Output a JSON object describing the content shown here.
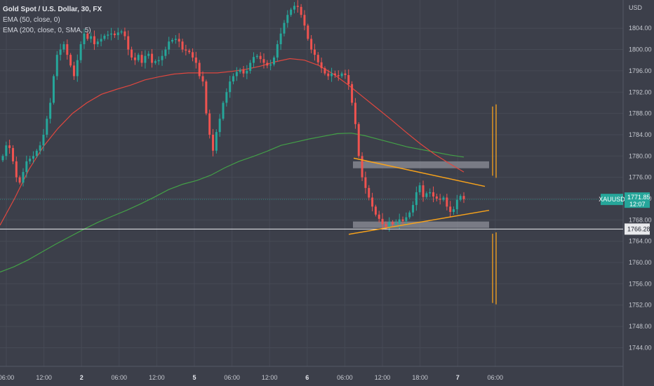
{
  "legend": {
    "title": "Gold Spot / U.S. Dollar, 30, FX",
    "ema50": "EMA (50, close, 0)",
    "ema200": "EMA (200, close, 0, SMA, 5)"
  },
  "colors": {
    "background": "#3c3f4a",
    "up": "#26a69a",
    "down": "#ef5350",
    "ema50": "#e0473f",
    "ema200": "#43a047",
    "trendline": "#f7a21b",
    "zone": "#8d909a",
    "price_tag": "#26a69a",
    "level_tag": "#e8e9ec"
  },
  "price_tag": {
    "symbol": "XAUUSD",
    "price": "1771.85",
    "countdown": "12:07"
  },
  "level_tag": {
    "price": "1766.28"
  },
  "chart_data": {
    "type": "candlestick",
    "currency": "USD",
    "timeframe": "30",
    "ylim": [
      1740.5,
      1809.3
    ],
    "y_ticks": [
      "1804.00",
      "1800.00",
      "1796.00",
      "1792.00",
      "1788.00",
      "1784.00",
      "1780.00",
      "1776.00",
      "1772.00",
      "1768.00",
      "1764.00",
      "1760.00",
      "1756.00",
      "1752.00",
      "1748.00",
      "1744.00"
    ],
    "x_ticks": [
      "06:00",
      "12:00",
      "2",
      "06:00",
      "12:00",
      "5",
      "06:00",
      "12:00",
      "6",
      "06:00",
      "12:00",
      "18:00",
      "7",
      "06:00"
    ],
    "bold_x_ticks": [
      "2",
      "5",
      "6",
      "7"
    ],
    "closes": [
      1780,
      1782,
      1781.5,
      1779,
      1776,
      1775,
      1777,
      1779,
      1779.5,
      1780,
      1781,
      1782,
      1784,
      1787,
      1790,
      1795,
      1799,
      1800,
      1801,
      1799,
      1797,
      1795,
      1798,
      1801,
      1803,
      1802,
      1802.5,
      1801,
      1801.5,
      1802,
      1802.6,
      1802.8,
      1803,
      1802.7,
      1803.2,
      1803.4,
      1802.5,
      1800,
      1798.5,
      1798,
      1799,
      1797.5,
      1798.8,
      1799.2,
      1797.5,
      1797.8,
      1798,
      1798.8,
      1800,
      1801.5,
      1801.8,
      1802,
      1801.5,
      1800,
      1799.8,
      1799.5,
      1798.5,
      1797.5,
      1795,
      1794,
      1788,
      1784,
      1781,
      1784.5,
      1787,
      1790,
      1792,
      1794,
      1795,
      1795.8,
      1796.2,
      1795.5,
      1796,
      1797.5,
      1798.6,
      1798.8,
      1798.2,
      1797.5,
      1797,
      1797.2,
      1798.5,
      1801,
      1803,
      1805,
      1806.5,
      1807.5,
      1808.2,
      1808,
      1806.5,
      1804.5,
      1802,
      1800,
      1799,
      1797.6,
      1796.5,
      1795.5,
      1795,
      1795.5,
      1795.2,
      1795,
      1795.5,
      1795.2,
      1793.5,
      1790,
      1786,
      1780,
      1776,
      1774,
      1772.2,
      1770.5,
      1769,
      1768.2,
      1767.2,
      1766.7,
      1767.6,
      1767.2,
      1767.4,
      1768.1,
      1767.8,
      1768.5,
      1769.4,
      1770.8,
      1773.2,
      1774.5,
      1772.3,
      1773,
      1773.2,
      1772.4,
      1772,
      1771.8,
      1772.2,
      1770.5,
      1769.5,
      1770,
      1771.8,
      1772.5,
      1771.9
    ],
    "ema50": [
      1767,
      1772,
      1777.5,
      1781.8,
      1785.2,
      1788,
      1790,
      1791.6,
      1792.5,
      1793.3,
      1794.3,
      1794.9,
      1795.4,
      1795.6,
      1795.6,
      1795.6,
      1795.9,
      1796.3,
      1796.9,
      1797.7,
      1798.3,
      1798,
      1797,
      1795.4,
      1793.4,
      1791.2,
      1789,
      1786.8,
      1784.5,
      1782.3,
      1780.3,
      1778.6,
      1777
    ],
    "ema200": [
      1758.2,
      1759.2,
      1760.5,
      1762,
      1763.5,
      1764.9,
      1766.3,
      1767.6,
      1768.7,
      1769.8,
      1771,
      1772.3,
      1773.7,
      1774.7,
      1775.4,
      1776.4,
      1777.8,
      1779,
      1779.9,
      1780.9,
      1782,
      1782.6,
      1783.2,
      1783.7,
      1784.2,
      1784.3,
      1783.8,
      1783.1,
      1782.4,
      1781.7,
      1781.2,
      1780.7,
      1780.2,
      1779.8
    ],
    "annotations": {
      "resistance_zone": [
        1777.7,
        1779
      ],
      "support_zone": [
        1766.5,
        1767.7
      ],
      "horizontal_level": 1766.28,
      "current_price": 1771.85,
      "descending_trendline": [
        1779.6,
        1774.3
      ],
      "ascending_trendline": [
        1765.3,
        1769.8
      ],
      "projection_up": [
        1776.3,
        1789.3
      ],
      "projection_down": [
        1752.4,
        1765.4
      ]
    }
  }
}
